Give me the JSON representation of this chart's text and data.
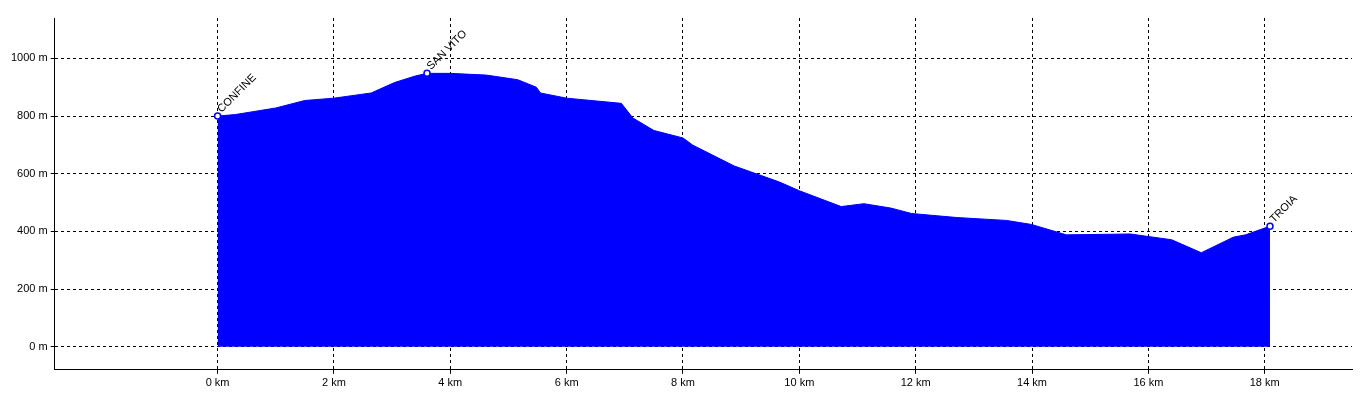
{
  "chart_data": {
    "type": "area",
    "x": [
      0,
      0.3,
      1.0,
      1.5,
      2.0,
      2.64,
      3.04,
      3.4,
      3.6,
      4.0,
      4.62,
      5.16,
      5.48,
      5.55,
      6.0,
      6.94,
      7.14,
      7.5,
      8.0,
      8.17,
      8.88,
      9.66,
      10.0,
      10.72,
      11.11,
      11.57,
      11.93,
      12.71,
      13.56,
      13.99,
      14.59,
      15.69,
      15.97,
      16.4,
      16.91,
      17.46,
      17.67,
      18.09
    ],
    "series": [
      {
        "color": "#0000ff",
        "values": [
          800,
          805,
          828,
          854,
          862,
          880,
          916,
          939,
          948,
          948,
          942,
          926,
          900,
          880,
          862,
          844,
          793,
          750,
          724,
          699,
          627,
          571,
          541,
          486,
          496,
          481,
          462,
          448,
          438,
          424,
          388,
          391,
          383,
          371,
          326,
          380,
          388,
          418
        ]
      },
      {
        "type": "scatter",
        "color": "#0000ff",
        "marker": "circle",
        "x": [
          0,
          3.6,
          18.09
        ],
        "values": [
          800,
          948,
          418
        ]
      }
    ],
    "annotations": [
      {
        "text": "CONFINE",
        "x": 0,
        "y": 800
      },
      {
        "text": "SAN VITO",
        "x": 3.6,
        "y": 948
      },
      {
        "text": "TROIA",
        "x": 18.09,
        "y": 418
      }
    ],
    "xlim": [
      -2.8,
      19.5
    ],
    "ylim": [
      -80,
      1140
    ],
    "xticks": [
      {
        "value": 0,
        "label": "0 km"
      },
      {
        "value": 2,
        "label": "2 km"
      },
      {
        "value": 4,
        "label": "4 km"
      },
      {
        "value": 6,
        "label": "6 km"
      },
      {
        "value": 8,
        "label": "8 km"
      },
      {
        "value": 10,
        "label": "10 km"
      },
      {
        "value": 12,
        "label": "12 km"
      },
      {
        "value": 14,
        "label": "14 km"
      },
      {
        "value": 16,
        "label": "16 km"
      },
      {
        "value": 18,
        "label": "18 km"
      }
    ],
    "yticks": [
      {
        "value": 0,
        "label": "0 m"
      },
      {
        "value": 200,
        "label": "200 m"
      },
      {
        "value": 400,
        "label": "400 m"
      },
      {
        "value": 600,
        "label": "600 m"
      },
      {
        "value": 800,
        "label": "800 m"
      },
      {
        "value": 1000,
        "label": "1000 m"
      }
    ],
    "grid": true,
    "line_style": "dashed",
    "legend": false
  }
}
